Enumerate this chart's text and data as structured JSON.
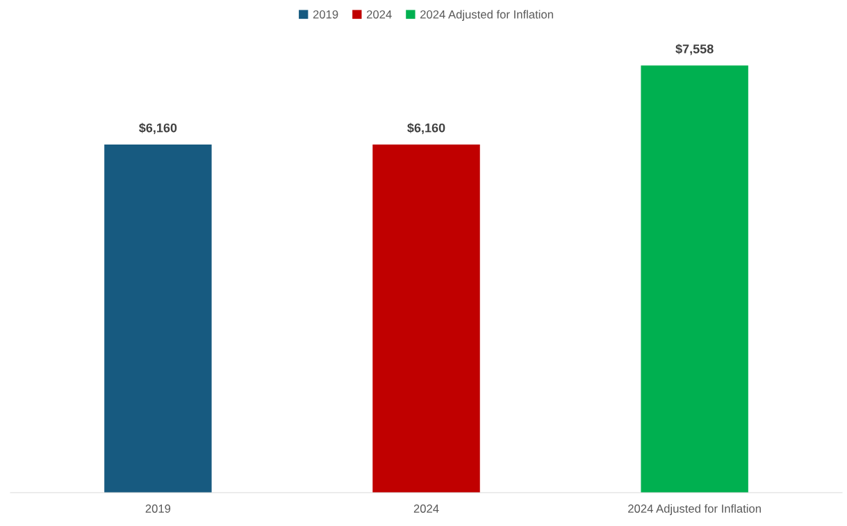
{
  "chart_data": {
    "type": "bar",
    "categories": [
      "2019",
      "2024",
      "2024 Adjusted for Inflation"
    ],
    "series": [
      {
        "name": "2019",
        "color": "#175a80",
        "values": [
          6160,
          null,
          null
        ],
        "value_labels": [
          "$6,160",
          null,
          null
        ]
      },
      {
        "name": "2024",
        "color": "#c00000",
        "values": [
          null,
          6160,
          null
        ],
        "value_labels": [
          null,
          "$6,160",
          null
        ]
      },
      {
        "name": "2024 Adjusted for Inflation",
        "color": "#00b050",
        "values": [
          null,
          null,
          7558
        ],
        "value_labels": [
          null,
          null,
          "$7,558"
        ]
      }
    ],
    "legend": "top",
    "grid": false
  }
}
